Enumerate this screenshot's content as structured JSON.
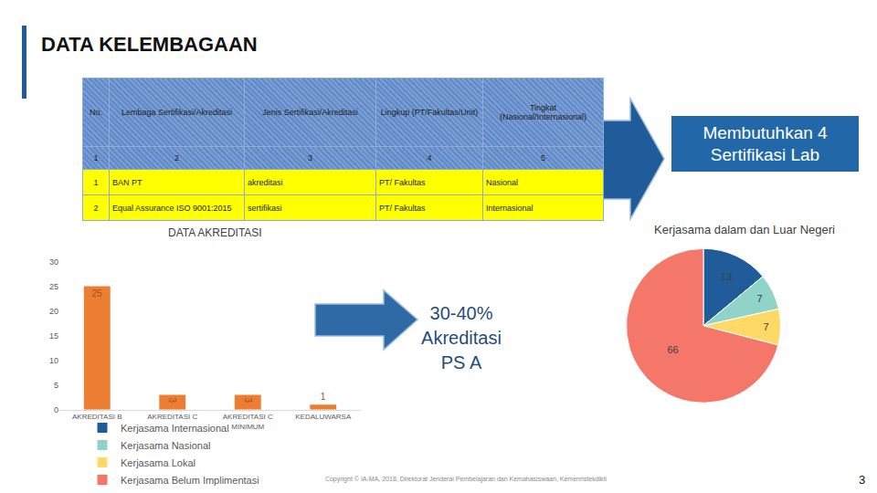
{
  "title": "DATA KELEMBAGAAN",
  "table": {
    "header": [
      "No.",
      "Lembaga Sertifikasi/Akreditasi",
      "Jenis Sertifikasi/Akreditasi",
      "Lingkup (PT/Fakultas/Unit)",
      "Tingkat (Nasional/Internasional)"
    ],
    "column_numbers": [
      "1",
      "2",
      "3",
      "4",
      "5"
    ],
    "rows": [
      [
        "1",
        "BAN PT",
        "akreditasi",
        "PT/ Fakultas",
        "Nasional"
      ],
      [
        "2",
        "Equal Assurance ISO 9001:2015",
        "sertifikasi",
        "PT/ Fakultas",
        "Internasional"
      ]
    ]
  },
  "callouts": [
    {
      "lines": [
        "Membutuhkan 4",
        "Sertifikasi Lab"
      ]
    },
    {
      "lines": [
        "30-40%",
        "Akreditasi",
        "PS A"
      ]
    }
  ],
  "footer": "Copyright © IA-MA, 2018, Direktorat Jenderal Pembelajaran dan Kemahasiswaan, Kemenristekdikti",
  "page_number": "3",
  "chart_data": [
    {
      "type": "bar",
      "title": "DATA AKREDITASI",
      "categories": [
        "AKREDITASI B",
        "AKREDITASI C",
        "AKREDITASI C MINIMUM",
        "KEDALUWARSA"
      ],
      "values": [
        25,
        3,
        3,
        1
      ],
      "color": "#ed7d31",
      "ylim": [
        0,
        30
      ],
      "yticks": [
        0,
        5,
        10,
        15,
        20,
        25,
        30
      ],
      "grid": false,
      "data_labels": true
    },
    {
      "type": "pie",
      "title": "Kerjasama dalam dan Luar Negeri",
      "categories": [
        "Kerjasama Internasional",
        "Kerjasama Nasional",
        "Kerjasama Lokal",
        "Kerjasama Belum Implimentasi"
      ],
      "values": [
        13,
        7,
        7,
        66
      ],
      "colors": [
        "#1f5c99",
        "#8fd3c9",
        "#ffd966",
        "#f4776a"
      ],
      "data_labels": true,
      "legend": "bottom"
    }
  ]
}
